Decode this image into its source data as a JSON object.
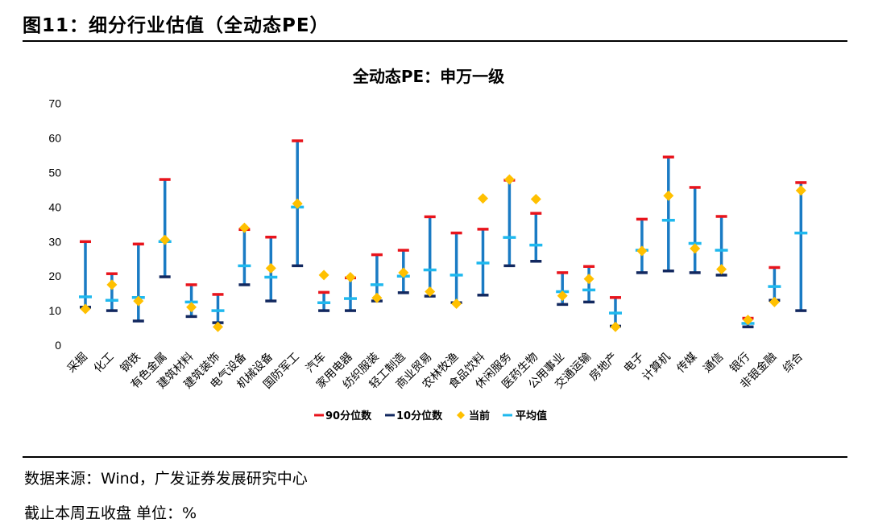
{
  "figure_title": "图11：细分行业估值（全动态PE）",
  "source_note": "数据来源：Wind，广发证券发展研究中心",
  "unit_note": "截止本周五收盘 单位：%",
  "colors": {
    "p90": "#e8141c",
    "p10": "#12285f",
    "current": "#ffc000",
    "mean": "#1fb8ee",
    "bar": "#1a7bc4"
  },
  "chart_data": {
    "type": "range-dot",
    "title": "全动态PE：申万一级",
    "ylim": [
      0,
      70
    ],
    "yticks": [
      0,
      10,
      20,
      30,
      40,
      50,
      60,
      70
    ],
    "legend": [
      "90分位数",
      "10分位数",
      "当前",
      "平均值"
    ],
    "legend_position": "bottom",
    "categories": [
      "采掘",
      "化工",
      "钢铁",
      "有色金属",
      "建筑材料",
      "建筑装饰",
      "电气设备",
      "机械设备",
      "国防军工",
      "汽车",
      "家用电器",
      "纺织服装",
      "轻工制造",
      "商业贸易",
      "农林牧渔",
      "食品饮料",
      "休闲服务",
      "医药生物",
      "公用事业",
      "交通运输",
      "房地产",
      "电子",
      "计算机",
      "传媒",
      "通信",
      "银行",
      "非银金融",
      "综合"
    ],
    "series": [
      {
        "name": "90分位数",
        "values": [
          30,
          20.7,
          29.3,
          48,
          17.5,
          14.7,
          33.5,
          31.3,
          59.2,
          15.3,
          19.5,
          26.2,
          27.5,
          37.2,
          32.5,
          33.6,
          47.8,
          38.2,
          21,
          22.8,
          13.8,
          36.5,
          54.5,
          45.7,
          37.3,
          7.8,
          22.5,
          47.1
        ]
      },
      {
        "name": "10分位数",
        "values": [
          11,
          10,
          7,
          19.8,
          8.3,
          6.5,
          17.5,
          12.8,
          23,
          10,
          10,
          12.8,
          15.2,
          14.2,
          12.3,
          14.5,
          23,
          24.3,
          11.8,
          12.5,
          5.5,
          21,
          21.5,
          21,
          20.3,
          5.3,
          13,
          10
        ]
      },
      {
        "name": "当前",
        "values": [
          10.5,
          17.5,
          12.8,
          30.5,
          11,
          5.3,
          34,
          22.3,
          41,
          20.3,
          19.7,
          13.7,
          21,
          15.5,
          12,
          42.5,
          48,
          42.3,
          14.3,
          19.2,
          5.3,
          27.3,
          43.3,
          28,
          22,
          7.3,
          12.5,
          44.8
        ]
      },
      {
        "name": "平均值",
        "values": [
          14,
          13,
          13.8,
          30,
          12.5,
          10,
          23,
          19.7,
          40,
          12.3,
          13.5,
          17.5,
          20,
          21.8,
          20.3,
          23.8,
          31.2,
          29,
          15.5,
          16,
          9.3,
          27.5,
          36.2,
          29.5,
          27.5,
          6.3,
          17,
          32.5
        ]
      }
    ]
  }
}
